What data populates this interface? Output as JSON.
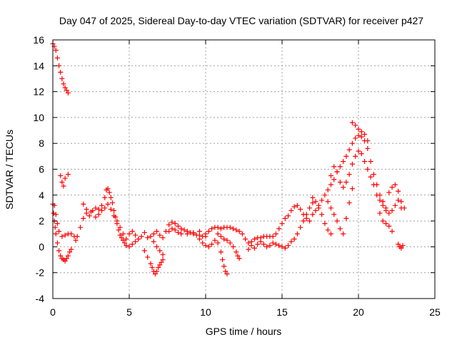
{
  "chart_data": {
    "type": "scatter",
    "title": "Day 047 of 2025, Sidereal Day-to-day VTEC variation (SDTVAR) for receiver p427",
    "xlabel": "GPS time / hours",
    "ylabel": "SDTVAR / TECUs",
    "xlim": [
      0,
      25
    ],
    "ylim": [
      -4,
      16
    ],
    "xticks": [
      0,
      5,
      10,
      15,
      20,
      25
    ],
    "yticks": [
      -4,
      -2,
      0,
      2,
      4,
      6,
      8,
      10,
      12,
      14,
      16
    ],
    "grid": true,
    "marker": "+",
    "color": "#ff0000",
    "series": [
      {
        "name": "SDTVAR",
        "points": [
          [
            0.0,
            15.7
          ],
          [
            0.1,
            15.5
          ],
          [
            0.2,
            15.2
          ],
          [
            0.3,
            14.6
          ],
          [
            0.4,
            14.0
          ],
          [
            0.5,
            13.5
          ],
          [
            0.6,
            13.0
          ],
          [
            0.7,
            12.6
          ],
          [
            0.8,
            12.3
          ],
          [
            0.9,
            12.1
          ],
          [
            1.0,
            11.9
          ],
          [
            0.5,
            5.5
          ],
          [
            0.6,
            5.0
          ],
          [
            0.7,
            4.7
          ],
          [
            0.8,
            5.3
          ],
          [
            1.0,
            5.6
          ],
          [
            0.0,
            3.3
          ],
          [
            0.05,
            2.6
          ],
          [
            0.1,
            2.0
          ],
          [
            0.15,
            1.5
          ],
          [
            0.2,
            1.0
          ],
          [
            0.3,
            0.3
          ],
          [
            0.4,
            -0.3
          ],
          [
            0.5,
            -0.7
          ],
          [
            0.6,
            -0.9
          ],
          [
            0.7,
            -1.0
          ],
          [
            0.8,
            -1.1
          ],
          [
            0.9,
            -0.9
          ],
          [
            1.0,
            -0.7
          ],
          [
            1.1,
            -0.4
          ],
          [
            1.2,
            -0.2
          ],
          [
            0.1,
            3.2
          ],
          [
            0.2,
            2.5
          ],
          [
            0.3,
            1.8
          ],
          [
            0.4,
            1.2
          ],
          [
            0.6,
            0.8
          ],
          [
            0.8,
            0.9
          ],
          [
            1.0,
            1.0
          ],
          [
            1.2,
            1.0
          ],
          [
            1.4,
            0.8
          ],
          [
            1.5,
            0.5
          ],
          [
            1.6,
            0.8
          ],
          [
            1.8,
            1.5
          ],
          [
            2.0,
            2.2
          ],
          [
            2.2,
            2.6
          ],
          [
            2.4,
            2.4
          ],
          [
            2.6,
            2.8
          ],
          [
            2.8,
            3.0
          ],
          [
            3.0,
            2.9
          ],
          [
            3.2,
            3.2
          ],
          [
            3.4,
            3.8
          ],
          [
            3.5,
            4.4
          ],
          [
            3.6,
            4.5
          ],
          [
            3.7,
            4.2
          ],
          [
            3.8,
            3.8
          ],
          [
            3.9,
            3.4
          ],
          [
            4.0,
            2.8
          ],
          [
            4.1,
            2.3
          ],
          [
            4.2,
            1.8
          ],
          [
            4.3,
            1.3
          ],
          [
            4.4,
            0.9
          ],
          [
            4.5,
            0.7
          ],
          [
            4.6,
            0.5
          ],
          [
            4.7,
            0.3
          ],
          [
            4.8,
            0.1
          ],
          [
            5.0,
            0.0
          ],
          [
            5.2,
            0.2
          ],
          [
            5.4,
            0.4
          ],
          [
            2.0,
            3.3
          ],
          [
            2.2,
            2.9
          ],
          [
            2.5,
            2.7
          ],
          [
            2.8,
            2.3
          ],
          [
            3.0,
            2.5
          ],
          [
            3.2,
            2.8
          ],
          [
            3.4,
            3.0
          ],
          [
            3.6,
            3.3
          ],
          [
            3.8,
            2.9
          ],
          [
            4.0,
            2.4
          ],
          [
            4.2,
            2.0
          ],
          [
            4.4,
            1.5
          ],
          [
            4.6,
            1.0
          ],
          [
            4.8,
            0.6
          ],
          [
            5.0,
            1.0
          ],
          [
            5.2,
            1.2
          ],
          [
            5.4,
            0.9
          ],
          [
            5.6,
            0.6
          ],
          [
            5.8,
            0.8
          ],
          [
            6.0,
            1.1
          ],
          [
            6.2,
            0.7
          ],
          [
            6.4,
            0.8
          ],
          [
            6.6,
            1.0
          ],
          [
            6.8,
            1.2
          ],
          [
            7.0,
            0.9
          ],
          [
            7.2,
            0.7
          ],
          [
            6.0,
            -0.3
          ],
          [
            6.2,
            -0.8
          ],
          [
            6.4,
            -1.3
          ],
          [
            6.5,
            -1.6
          ],
          [
            6.6,
            -1.9
          ],
          [
            6.7,
            -2.1
          ],
          [
            6.8,
            -1.9
          ],
          [
            6.9,
            -1.6
          ],
          [
            7.0,
            -1.4
          ],
          [
            7.1,
            -1.2
          ],
          [
            7.2,
            -1.0
          ],
          [
            6.6,
            0.4
          ],
          [
            6.8,
            0.0
          ],
          [
            7.0,
            -0.3
          ],
          [
            7.2,
            -0.6
          ],
          [
            7.4,
            1.2
          ],
          [
            7.6,
            1.7
          ],
          [
            7.8,
            1.9
          ],
          [
            8.0,
            1.8
          ],
          [
            8.2,
            1.6
          ],
          [
            8.4,
            1.4
          ],
          [
            8.6,
            1.3
          ],
          [
            8.8,
            1.2
          ],
          [
            9.0,
            1.1
          ],
          [
            9.2,
            1.0
          ],
          [
            9.4,
            0.9
          ],
          [
            9.6,
            0.9
          ],
          [
            9.8,
            0.8
          ],
          [
            10.0,
            0.8
          ],
          [
            7.6,
            1.2
          ],
          [
            7.8,
            1.4
          ],
          [
            8.0,
            1.3
          ],
          [
            8.2,
            1.1
          ],
          [
            8.4,
            1.0
          ],
          [
            8.8,
            1.0
          ],
          [
            9.2,
            1.1
          ],
          [
            9.6,
            1.2
          ],
          [
            9.6,
            0.6
          ],
          [
            9.8,
            0.3
          ],
          [
            10.0,
            0.1
          ],
          [
            10.2,
            0.0
          ],
          [
            10.4,
            0.2
          ],
          [
            10.6,
            0.5
          ],
          [
            10.8,
            0.3
          ],
          [
            11.0,
            -0.4
          ],
          [
            11.1,
            -1.0
          ],
          [
            11.2,
            -1.5
          ],
          [
            11.3,
            -1.9
          ],
          [
            11.4,
            -2.1
          ],
          [
            10.0,
            1.0
          ],
          [
            10.2,
            1.2
          ],
          [
            10.4,
            1.4
          ],
          [
            10.6,
            1.5
          ],
          [
            10.8,
            1.5
          ],
          [
            11.0,
            1.4
          ],
          [
            11.2,
            1.5
          ],
          [
            11.4,
            1.5
          ],
          [
            11.6,
            1.5
          ],
          [
            11.8,
            1.4
          ],
          [
            12.0,
            1.3
          ],
          [
            10.8,
            1.0
          ],
          [
            11.0,
            0.8
          ],
          [
            11.2,
            0.6
          ],
          [
            11.4,
            0.5
          ],
          [
            11.6,
            0.3
          ],
          [
            11.8,
            0.0
          ],
          [
            12.0,
            -0.4
          ],
          [
            12.1,
            -0.7
          ],
          [
            12.2,
            -0.9
          ],
          [
            12.2,
            1.2
          ],
          [
            12.4,
            1.0
          ],
          [
            12.6,
            0.6
          ],
          [
            12.8,
            0.3
          ],
          [
            13.0,
            0.4
          ],
          [
            13.2,
            0.6
          ],
          [
            13.4,
            0.7
          ],
          [
            13.6,
            0.7
          ],
          [
            13.8,
            0.8
          ],
          [
            14.0,
            0.8
          ],
          [
            14.2,
            0.8
          ],
          [
            12.8,
            -0.2
          ],
          [
            13.0,
            0.1
          ],
          [
            13.2,
            -0.1
          ],
          [
            13.4,
            0.2
          ],
          [
            13.6,
            0.4
          ],
          [
            13.8,
            0.2
          ],
          [
            14.0,
            0.0
          ],
          [
            14.2,
            0.1
          ],
          [
            14.4,
            0.3
          ],
          [
            14.6,
            0.2
          ],
          [
            14.8,
            0.1
          ],
          [
            14.4,
            0.8
          ],
          [
            14.6,
            1.0
          ],
          [
            14.8,
            1.4
          ],
          [
            15.0,
            1.8
          ],
          [
            15.2,
            2.2
          ],
          [
            15.4,
            2.4
          ],
          [
            15.6,
            2.8
          ],
          [
            15.8,
            3.1
          ],
          [
            16.0,
            3.2
          ],
          [
            16.2,
            2.9
          ],
          [
            16.4,
            2.5
          ],
          [
            16.6,
            2.2
          ],
          [
            15.0,
            0.0
          ],
          [
            15.2,
            -0.1
          ],
          [
            15.4,
            0.1
          ],
          [
            15.6,
            0.4
          ],
          [
            15.8,
            0.6
          ],
          [
            16.0,
            1.0
          ],
          [
            16.2,
            1.5
          ],
          [
            16.4,
            2.0
          ],
          [
            16.6,
            2.5
          ],
          [
            16.8,
            3.0
          ],
          [
            17.0,
            3.4
          ],
          [
            16.8,
            2.0
          ],
          [
            17.0,
            2.5
          ],
          [
            17.2,
            2.8
          ],
          [
            17.4,
            3.0
          ],
          [
            17.6,
            2.5
          ],
          [
            17.8,
            1.8
          ],
          [
            18.0,
            1.3
          ],
          [
            18.2,
            1.0
          ],
          [
            17.0,
            3.8
          ],
          [
            17.2,
            3.5
          ],
          [
            17.4,
            3.2
          ],
          [
            17.6,
            3.6
          ],
          [
            17.8,
            4.0
          ],
          [
            18.0,
            4.4
          ],
          [
            18.2,
            4.8
          ],
          [
            18.4,
            5.2
          ],
          [
            18.6,
            5.8
          ],
          [
            18.8,
            6.2
          ],
          [
            19.0,
            6.6
          ],
          [
            19.2,
            7.0
          ],
          [
            19.4,
            7.5
          ],
          [
            19.6,
            8.0
          ],
          [
            19.8,
            8.4
          ],
          [
            20.0,
            8.6
          ],
          [
            20.2,
            8.5
          ],
          [
            20.4,
            8.2
          ],
          [
            20.6,
            7.6
          ],
          [
            20.8,
            6.6
          ],
          [
            21.0,
            5.6
          ],
          [
            21.2,
            4.8
          ],
          [
            21.4,
            4.0
          ],
          [
            21.6,
            3.5
          ],
          [
            21.8,
            3.0
          ],
          [
            19.6,
            9.6
          ],
          [
            19.8,
            9.4
          ],
          [
            20.0,
            9.1
          ],
          [
            20.2,
            8.9
          ],
          [
            20.4,
            8.7
          ],
          [
            20.6,
            8.2
          ],
          [
            18.2,
            5.5
          ],
          [
            18.4,
            6.2
          ],
          [
            18.6,
            5.8
          ],
          [
            18.8,
            5.0
          ],
          [
            19.0,
            4.6
          ],
          [
            19.2,
            5.0
          ],
          [
            19.4,
            5.6
          ],
          [
            19.6,
            6.4
          ],
          [
            19.8,
            7.0
          ],
          [
            20.0,
            7.4
          ],
          [
            20.2,
            7.2
          ],
          [
            20.4,
            6.6
          ],
          [
            18.0,
            3.5
          ],
          [
            18.2,
            3.0
          ],
          [
            18.4,
            2.5
          ],
          [
            18.6,
            2.0
          ],
          [
            18.8,
            1.4
          ],
          [
            19.0,
            1.0
          ],
          [
            19.2,
            2.2
          ],
          [
            19.4,
            3.4
          ],
          [
            19.6,
            4.5
          ],
          [
            20.6,
            6.0
          ],
          [
            20.8,
            5.4
          ],
          [
            21.0,
            4.8
          ],
          [
            21.2,
            4.0
          ],
          [
            21.4,
            3.6
          ],
          [
            21.6,
            3.2
          ],
          [
            21.8,
            2.8
          ],
          [
            22.0,
            2.6
          ],
          [
            22.2,
            2.8
          ],
          [
            22.4,
            3.2
          ],
          [
            22.6,
            3.6
          ],
          [
            22.8,
            3.0
          ],
          [
            21.4,
            2.6
          ],
          [
            21.6,
            2.0
          ],
          [
            21.8,
            1.8
          ],
          [
            22.0,
            1.6
          ],
          [
            22.2,
            1.2
          ],
          [
            22.0,
            4.2
          ],
          [
            22.2,
            4.6
          ],
          [
            22.4,
            4.8
          ],
          [
            22.6,
            4.3
          ],
          [
            22.8,
            3.5
          ],
          [
            23.0,
            3.0
          ],
          [
            22.6,
            0.2
          ],
          [
            22.7,
            0.0
          ],
          [
            22.8,
            -0.1
          ],
          [
            22.9,
            0.1
          ]
        ]
      }
    ]
  }
}
